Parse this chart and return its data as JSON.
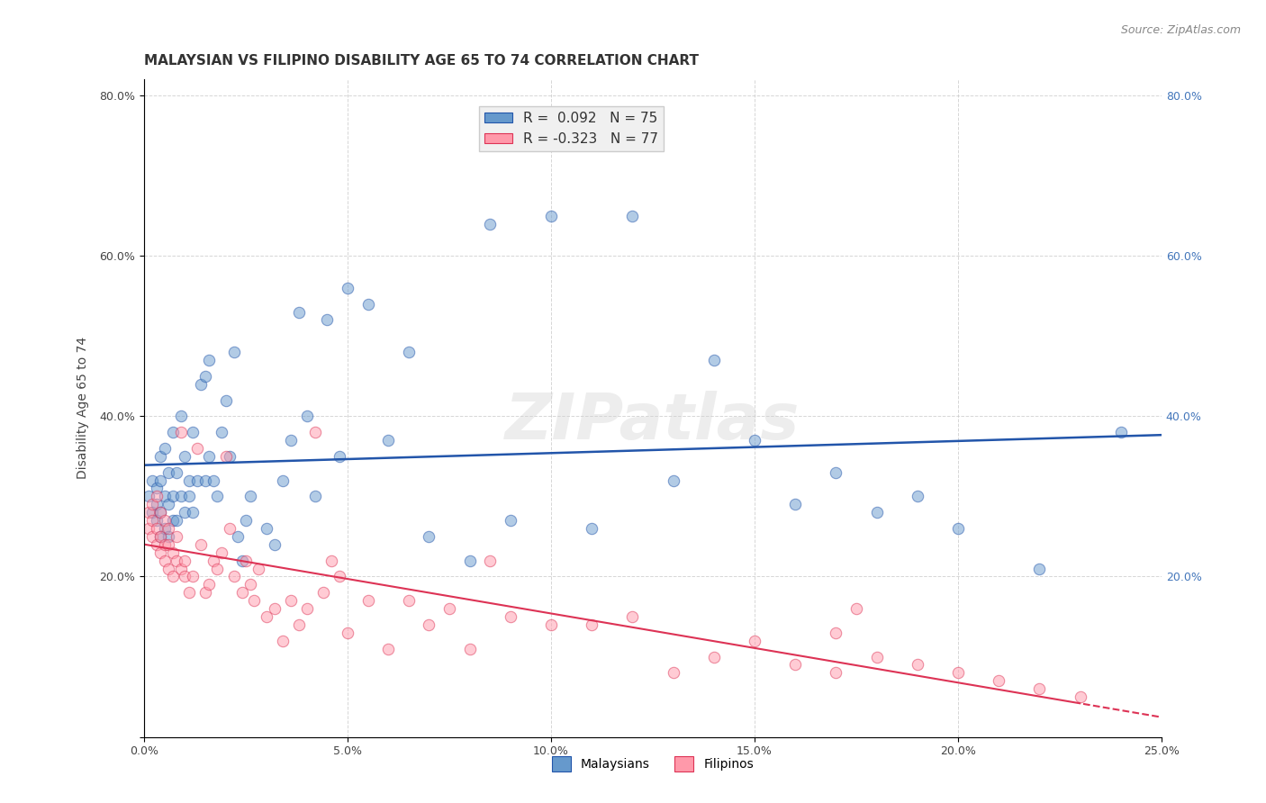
{
  "title": "MALAYSIAN VS FILIPINO DISABILITY AGE 65 TO 74 CORRELATION CHART",
  "source": "Source: ZipAtlas.com",
  "ylabel": "Disability Age 65 to 74",
  "xlabel": "",
  "xlim": [
    0.0,
    0.25
  ],
  "ylim": [
    0.0,
    0.82
  ],
  "xticks": [
    0.0,
    0.05,
    0.1,
    0.15,
    0.2,
    0.25
  ],
  "yticks": [
    0.0,
    0.2,
    0.4,
    0.6,
    0.8
  ],
  "xticklabels": [
    "0.0%",
    "5.0%",
    "10.0%",
    "15.0%",
    "20.0%",
    "25.0%"
  ],
  "yticklabels": [
    "",
    "20.0%",
    "40.0%",
    "60.0%",
    "80.0%"
  ],
  "malaysian_R": 0.092,
  "malaysian_N": 75,
  "filipino_R": -0.323,
  "filipino_N": 77,
  "blue_color": "#6699CC",
  "blue_line_color": "#2255AA",
  "pink_color": "#FF99AA",
  "pink_line_color": "#DD3355",
  "malaysian_x": [
    0.001,
    0.002,
    0.002,
    0.003,
    0.003,
    0.003,
    0.004,
    0.004,
    0.004,
    0.004,
    0.005,
    0.005,
    0.005,
    0.006,
    0.006,
    0.006,
    0.007,
    0.007,
    0.007,
    0.008,
    0.008,
    0.009,
    0.009,
    0.01,
    0.01,
    0.011,
    0.011,
    0.012,
    0.012,
    0.013,
    0.014,
    0.015,
    0.015,
    0.016,
    0.016,
    0.017,
    0.018,
    0.019,
    0.02,
    0.021,
    0.022,
    0.023,
    0.024,
    0.025,
    0.026,
    0.03,
    0.032,
    0.034,
    0.036,
    0.038,
    0.04,
    0.042,
    0.045,
    0.048,
    0.05,
    0.055,
    0.06,
    0.065,
    0.07,
    0.08,
    0.085,
    0.09,
    0.1,
    0.11,
    0.12,
    0.13,
    0.14,
    0.15,
    0.16,
    0.17,
    0.18,
    0.19,
    0.2,
    0.22,
    0.24
  ],
  "malaysian_y": [
    0.3,
    0.28,
    0.32,
    0.27,
    0.29,
    0.31,
    0.25,
    0.28,
    0.32,
    0.35,
    0.26,
    0.3,
    0.36,
    0.25,
    0.29,
    0.33,
    0.27,
    0.3,
    0.38,
    0.27,
    0.33,
    0.3,
    0.4,
    0.28,
    0.35,
    0.3,
    0.32,
    0.28,
    0.38,
    0.32,
    0.44,
    0.32,
    0.45,
    0.35,
    0.47,
    0.32,
    0.3,
    0.38,
    0.42,
    0.35,
    0.48,
    0.25,
    0.22,
    0.27,
    0.3,
    0.26,
    0.24,
    0.32,
    0.37,
    0.53,
    0.4,
    0.3,
    0.52,
    0.35,
    0.56,
    0.54,
    0.37,
    0.48,
    0.25,
    0.22,
    0.64,
    0.27,
    0.65,
    0.26,
    0.65,
    0.32,
    0.47,
    0.37,
    0.29,
    0.33,
    0.28,
    0.3,
    0.26,
    0.21,
    0.38
  ],
  "filipino_x": [
    0.001,
    0.001,
    0.002,
    0.002,
    0.002,
    0.003,
    0.003,
    0.003,
    0.004,
    0.004,
    0.004,
    0.005,
    0.005,
    0.005,
    0.006,
    0.006,
    0.006,
    0.007,
    0.007,
    0.008,
    0.008,
    0.009,
    0.009,
    0.01,
    0.01,
    0.011,
    0.012,
    0.013,
    0.014,
    0.015,
    0.016,
    0.017,
    0.018,
    0.019,
    0.02,
    0.021,
    0.022,
    0.024,
    0.025,
    0.026,
    0.027,
    0.028,
    0.03,
    0.032,
    0.034,
    0.036,
    0.038,
    0.04,
    0.042,
    0.044,
    0.046,
    0.048,
    0.05,
    0.055,
    0.06,
    0.065,
    0.07,
    0.075,
    0.08,
    0.085,
    0.09,
    0.1,
    0.11,
    0.12,
    0.13,
    0.14,
    0.15,
    0.16,
    0.17,
    0.18,
    0.19,
    0.2,
    0.21,
    0.22,
    0.23,
    0.17,
    0.175
  ],
  "filipino_y": [
    0.28,
    0.26,
    0.25,
    0.27,
    0.29,
    0.24,
    0.26,
    0.3,
    0.23,
    0.25,
    0.28,
    0.22,
    0.24,
    0.27,
    0.21,
    0.24,
    0.26,
    0.2,
    0.23,
    0.22,
    0.25,
    0.21,
    0.38,
    0.2,
    0.22,
    0.18,
    0.2,
    0.36,
    0.24,
    0.18,
    0.19,
    0.22,
    0.21,
    0.23,
    0.35,
    0.26,
    0.2,
    0.18,
    0.22,
    0.19,
    0.17,
    0.21,
    0.15,
    0.16,
    0.12,
    0.17,
    0.14,
    0.16,
    0.38,
    0.18,
    0.22,
    0.2,
    0.13,
    0.17,
    0.11,
    0.17,
    0.14,
    0.16,
    0.11,
    0.22,
    0.15,
    0.14,
    0.14,
    0.15,
    0.08,
    0.1,
    0.12,
    0.09,
    0.08,
    0.1,
    0.09,
    0.08,
    0.07,
    0.06,
    0.05,
    0.13,
    0.16
  ],
  "watermark": "ZIPatlas",
  "legend_box_color": "#F0F0F0",
  "title_fontsize": 11,
  "axis_label_fontsize": 10,
  "tick_fontsize": 9,
  "marker_size": 80,
  "marker_alpha": 0.5
}
